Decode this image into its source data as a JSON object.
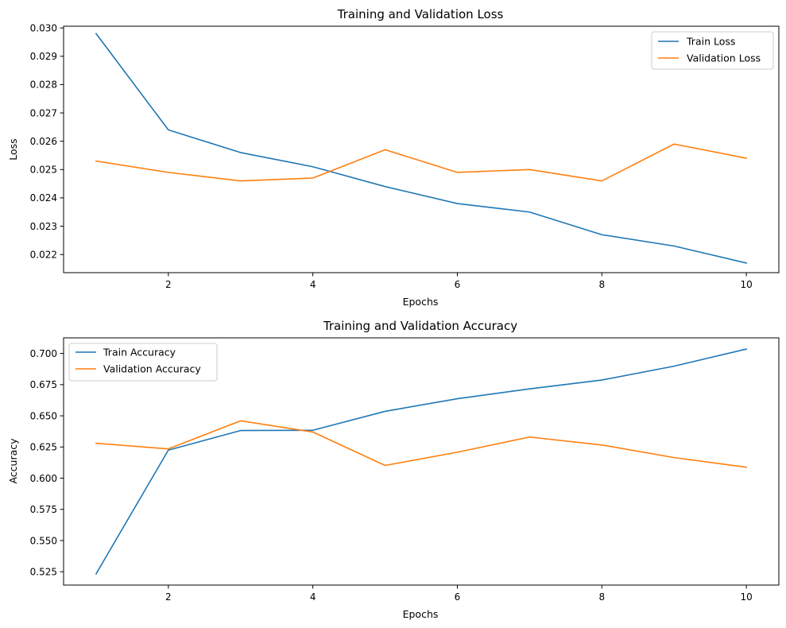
{
  "chart_data": [
    {
      "type": "line",
      "title": "Training and Validation Loss",
      "xlabel": "Epochs",
      "ylabel": "Loss",
      "x": [
        1,
        2,
        3,
        4,
        5,
        6,
        7,
        8,
        9,
        10
      ],
      "xlim": [
        0.55,
        10.45
      ],
      "ylim": [
        0.02136,
        0.03006
      ],
      "xticks": [
        2,
        4,
        6,
        8,
        10
      ],
      "xtick_labels": [
        "2",
        "4",
        "6",
        "8",
        "10"
      ],
      "yticks": [
        0.022,
        0.023,
        0.024,
        0.025,
        0.026,
        0.027,
        0.028,
        0.029,
        0.03
      ],
      "ytick_labels": [
        "0.022",
        "0.023",
        "0.024",
        "0.025",
        "0.026",
        "0.027",
        "0.028",
        "0.029",
        "0.030"
      ],
      "grid": false,
      "legend_position": "top-right",
      "series": [
        {
          "name": "Train Loss",
          "color": "#1f77b4",
          "values": [
            0.0298,
            0.0264,
            0.0256,
            0.0251,
            0.0244,
            0.0238,
            0.0235,
            0.0227,
            0.0223,
            0.0217
          ]
        },
        {
          "name": "Validation Loss",
          "color": "#ff7f0e",
          "values": [
            0.0253,
            0.0249,
            0.0246,
            0.0247,
            0.0257,
            0.0249,
            0.025,
            0.0246,
            0.0259,
            0.0254
          ]
        }
      ]
    },
    {
      "type": "line",
      "title": "Training and Validation Accuracy",
      "xlabel": "Epochs",
      "ylabel": "Accuracy",
      "x": [
        1,
        2,
        3,
        4,
        5,
        6,
        7,
        8,
        9,
        10
      ],
      "xlim": [
        0.55,
        10.45
      ],
      "ylim": [
        0.5143,
        0.7125
      ],
      "xticks": [
        2,
        4,
        6,
        8,
        10
      ],
      "xtick_labels": [
        "2",
        "4",
        "6",
        "8",
        "10"
      ],
      "yticks": [
        0.525,
        0.55,
        0.575,
        0.6,
        0.625,
        0.65,
        0.675,
        0.7
      ],
      "ytick_labels": [
        "0.525",
        "0.550",
        "0.575",
        "0.600",
        "0.625",
        "0.650",
        "0.675",
        "0.700"
      ],
      "grid": false,
      "legend_position": "top-left",
      "series": [
        {
          "name": "Train Accuracy",
          "color": "#1f77b4",
          "values": [
            0.5233,
            0.6225,
            0.6382,
            0.6384,
            0.6536,
            0.6637,
            0.6716,
            0.6787,
            0.6898,
            0.7035
          ]
        },
        {
          "name": "Validation Accuracy",
          "color": "#ff7f0e",
          "values": [
            0.628,
            0.6235,
            0.646,
            0.637,
            0.6102,
            0.6208,
            0.633,
            0.6266,
            0.6165,
            0.6088
          ]
        }
      ]
    }
  ]
}
